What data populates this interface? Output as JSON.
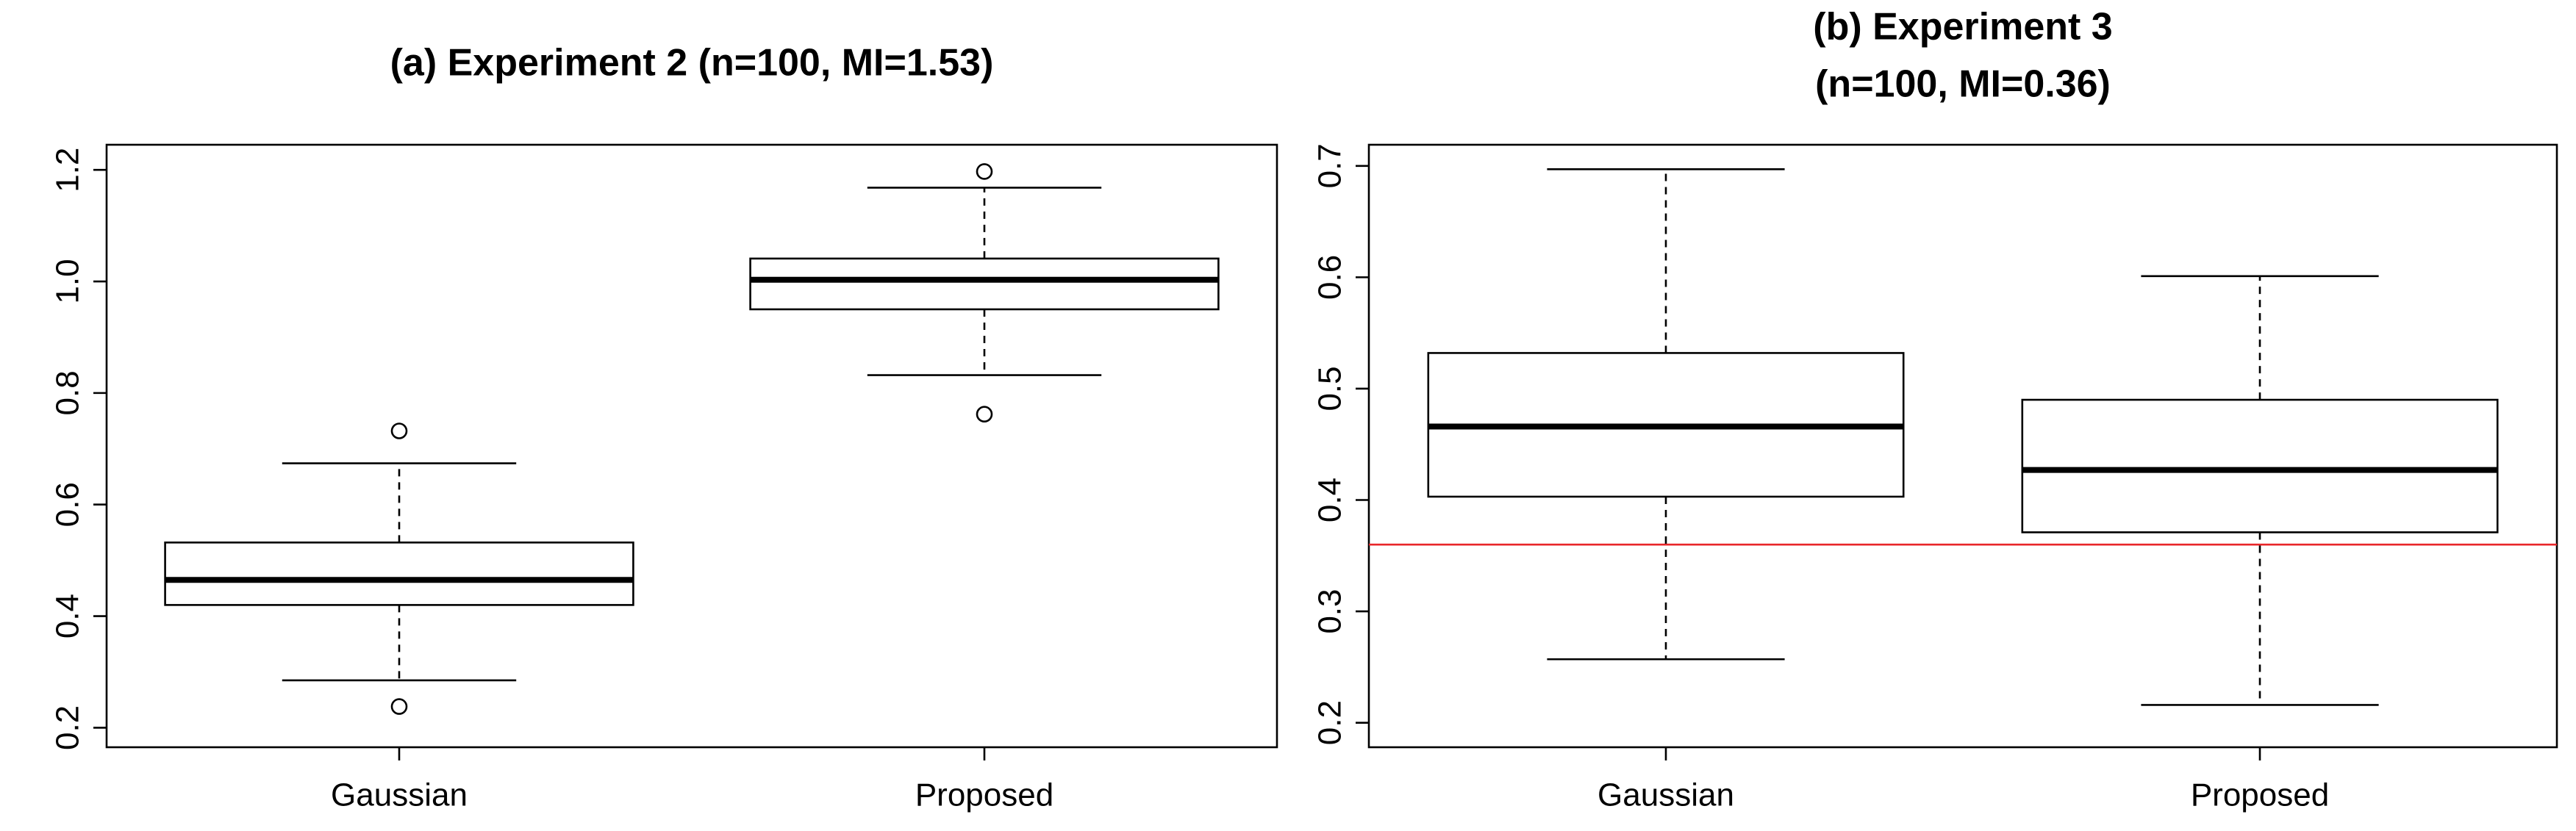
{
  "chart_data": [
    {
      "type": "box",
      "title": [
        "(a) Experiment 2 (n=100, MI=1.53)"
      ],
      "categories": [
        "Gaussian",
        "Proposed"
      ],
      "boxes": [
        {
          "whisker_low": 0.285,
          "q1": 0.42,
          "median": 0.465,
          "q3": 0.532,
          "whisker_high": 0.674,
          "outliers": [
            0.732,
            0.238
          ]
        },
        {
          "whisker_low": 0.832,
          "q1": 0.95,
          "median": 1.003,
          "q3": 1.041,
          "whisker_high": 1.168,
          "outliers": [
            1.197,
            0.762
          ]
        }
      ],
      "color": "#000000",
      "ylim": [
        0.165,
        1.245
      ],
      "yticks": [
        {
          "value": 0.2,
          "label": "0.2"
        },
        {
          "value": 0.4,
          "label": "0.4"
        },
        {
          "value": 0.6,
          "label": "0.6"
        },
        {
          "value": 0.8,
          "label": "0.8"
        },
        {
          "value": 1.0,
          "label": "1.0"
        },
        {
          "value": 1.2,
          "label": "1.2"
        }
      ]
    },
    {
      "type": "box",
      "title": [
        "(b) Experiment 3",
        "(n=100, MI=0.36)"
      ],
      "categories": [
        "Gaussian",
        "Proposed"
      ],
      "boxes": [
        {
          "whisker_low": 0.257,
          "q1": 0.403,
          "median": 0.466,
          "q3": 0.532,
          "whisker_high": 0.697,
          "outliers": []
        },
        {
          "whisker_low": 0.216,
          "q1": 0.371,
          "median": 0.427,
          "q3": 0.49,
          "whisker_high": 0.601,
          "outliers": []
        }
      ],
      "color": "#000000",
      "reference_line": {
        "value": 0.36,
        "color": "#e8262a"
      },
      "ylim": [
        0.178,
        0.719
      ],
      "yticks": [
        0.2,
        0.3,
        0.4,
        0.5,
        0.6,
        0.7
      ]
    }
  ]
}
